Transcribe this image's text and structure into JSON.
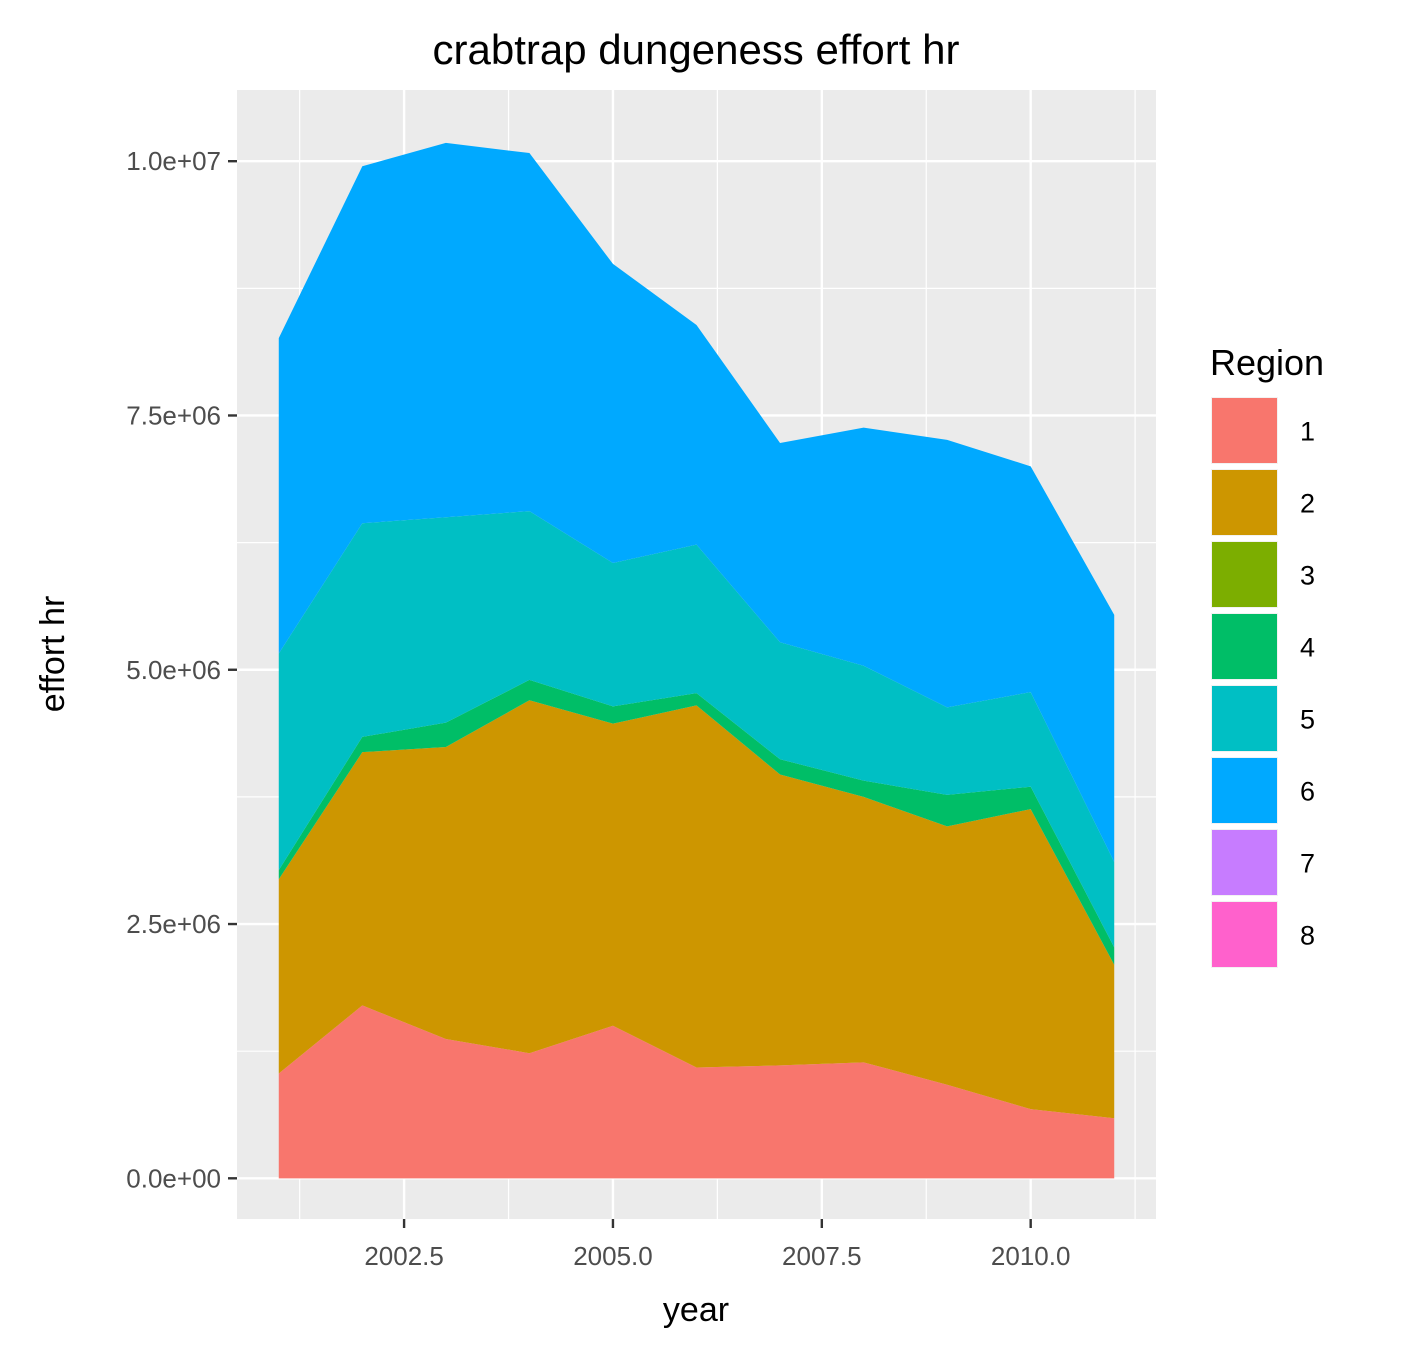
{
  "chart_data": {
    "type": "area",
    "stacked": true,
    "title": "crabtrap dungeness effort hr",
    "xlabel": "year",
    "ylabel": "effort hr",
    "x": [
      2001,
      2002,
      2003,
      2004,
      2005,
      2006,
      2007,
      2008,
      2009,
      2010,
      2011
    ],
    "xlim": [
      2000.5,
      2011.5
    ],
    "ylim": [
      -400000,
      10700000
    ],
    "x_ticks": [
      2002.5,
      2005.0,
      2007.5,
      2010.0
    ],
    "x_tick_labels": [
      "2002.5",
      "2005.0",
      "2007.5",
      "2010.0"
    ],
    "y_ticks": [
      0,
      2500000,
      5000000,
      7500000,
      10000000
    ],
    "y_tick_labels": [
      "0.0e+00",
      "2.5e+06",
      "5.0e+06",
      "7.5e+06",
      "1.0e+07"
    ],
    "grid": true,
    "legend_title": "Region",
    "legend_position": "right",
    "series": [
      {
        "name": "1",
        "color": "#F8766D",
        "values": [
          1030000,
          1700000,
          1370000,
          1230000,
          1500000,
          1090000,
          1110000,
          1140000,
          920000,
          680000,
          590000
        ]
      },
      {
        "name": "2",
        "color": "#CD9600",
        "values": [
          1910000,
          2490000,
          2870000,
          3470000,
          2970000,
          3560000,
          2860000,
          2610000,
          2540000,
          2950000,
          1510000
        ]
      },
      {
        "name": "3",
        "color": "#7CAE00",
        "values": [
          0,
          0,
          0,
          0,
          0,
          0,
          0,
          0,
          0,
          0,
          0
        ]
      },
      {
        "name": "4",
        "color": "#00BE67",
        "values": [
          90000,
          150000,
          240000,
          200000,
          170000,
          120000,
          150000,
          160000,
          310000,
          220000,
          170000
        ]
      },
      {
        "name": "5",
        "color": "#00BFC4",
        "values": [
          2130000,
          2100000,
          2020000,
          1660000,
          1410000,
          1460000,
          1150000,
          1130000,
          860000,
          930000,
          840000
        ]
      },
      {
        "name": "6",
        "color": "#00A9FF",
        "values": [
          3100000,
          3510000,
          3680000,
          3520000,
          2940000,
          2160000,
          1960000,
          2340000,
          2630000,
          2220000,
          2430000
        ]
      },
      {
        "name": "7",
        "color": "#C77CFF",
        "values": [
          0,
          0,
          0,
          0,
          0,
          0,
          0,
          0,
          0,
          0,
          0
        ]
      },
      {
        "name": "8",
        "color": "#FF61CC",
        "values": [
          0,
          0,
          0,
          0,
          0,
          0,
          0,
          0,
          0,
          0,
          0
        ]
      }
    ]
  }
}
